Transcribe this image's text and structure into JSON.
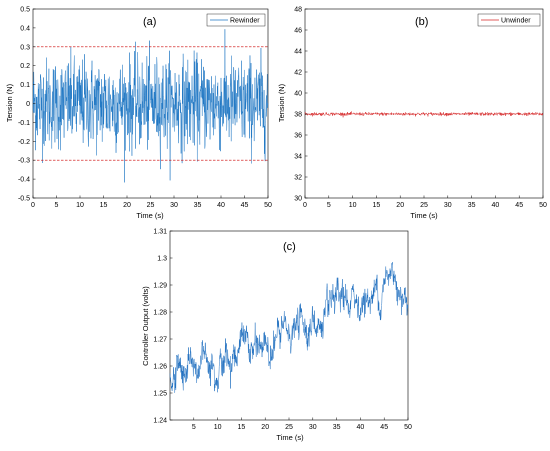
{
  "figure": {
    "panels": [
      {
        "key": "a",
        "panel_label": "(a)",
        "legend": "Rewinder",
        "ylabel": "Tension (N)",
        "xlabel": "Time (s)"
      },
      {
        "key": "b",
        "panel_label": "(b)",
        "legend": "Unwinder",
        "ylabel": "Tension (N)",
        "xlabel": "Time (s)"
      },
      {
        "key": "c",
        "panel_label": "(c)",
        "legend": "",
        "ylabel": "Controller Output (volts)",
        "xlabel": "Time (s)"
      }
    ]
  },
  "colors": {
    "rewinder_line": "#1f77c4",
    "unwinder_line": "#d62728",
    "threshold_line": "#cc0000",
    "controller_line": "#1f6fc0",
    "axes": "#000000"
  },
  "chart_data": [
    {
      "type": "line",
      "panel": "(a)",
      "series": [
        {
          "name": "Rewinder",
          "kind": "noise",
          "mean": 0,
          "std": 0.12,
          "min": -0.45,
          "max": 0.45
        }
      ],
      "x_range": [
        0,
        50
      ],
      "reference_lines": [
        0.3,
        -0.3
      ],
      "xlabel": "Time (s)",
      "ylabel": "Tension (N)",
      "xlim": [
        0,
        50
      ],
      "ylim": [
        -0.5,
        0.5
      ],
      "xticks": [
        0,
        5,
        10,
        15,
        20,
        25,
        30,
        35,
        40,
        45,
        50
      ],
      "yticks": [
        -0.5,
        -0.4,
        -0.3,
        -0.2,
        -0.1,
        0,
        0.1,
        0.2,
        0.3,
        0.4,
        0.5
      ],
      "legend": "top-right"
    },
    {
      "type": "line",
      "panel": "(b)",
      "series": [
        {
          "name": "Unwinder",
          "kind": "noise",
          "mean": 38,
          "std": 0.08
        }
      ],
      "x_range": [
        0,
        50
      ],
      "xlabel": "Time (s)",
      "ylabel": "Tension (N)",
      "xlim": [
        0,
        50
      ],
      "ylim": [
        30,
        48
      ],
      "xticks": [
        0,
        5,
        10,
        15,
        20,
        25,
        30,
        35,
        40,
        45,
        50
      ],
      "yticks": [
        30,
        32,
        34,
        36,
        38,
        40,
        42,
        44,
        46,
        48
      ],
      "legend": "top-right"
    },
    {
      "type": "line",
      "panel": "(c)",
      "series": [
        {
          "kind": "trend_noise",
          "trend_x": [
            0,
            2,
            5,
            8,
            12,
            15,
            18,
            22,
            25,
            28,
            32,
            35,
            38,
            42,
            45,
            47,
            50
          ],
          "trend_y": [
            1.255,
            1.26,
            1.258,
            1.265,
            1.262,
            1.268,
            1.265,
            1.27,
            1.272,
            1.276,
            1.275,
            1.28,
            1.283,
            1.285,
            1.29,
            1.295,
            1.285
          ],
          "std": 0.004
        }
      ],
      "xlabel": "Time (s)",
      "ylabel": "Controller Output (volts)",
      "xlim": [
        0,
        50
      ],
      "ylim": [
        1.24,
        1.31
      ],
      "xticks": [
        5,
        10,
        15,
        20,
        25,
        30,
        35,
        40,
        45,
        50
      ],
      "yticks": [
        1.24,
        1.25,
        1.26,
        1.27,
        1.28,
        1.29,
        1.3,
        1.31
      ]
    }
  ]
}
